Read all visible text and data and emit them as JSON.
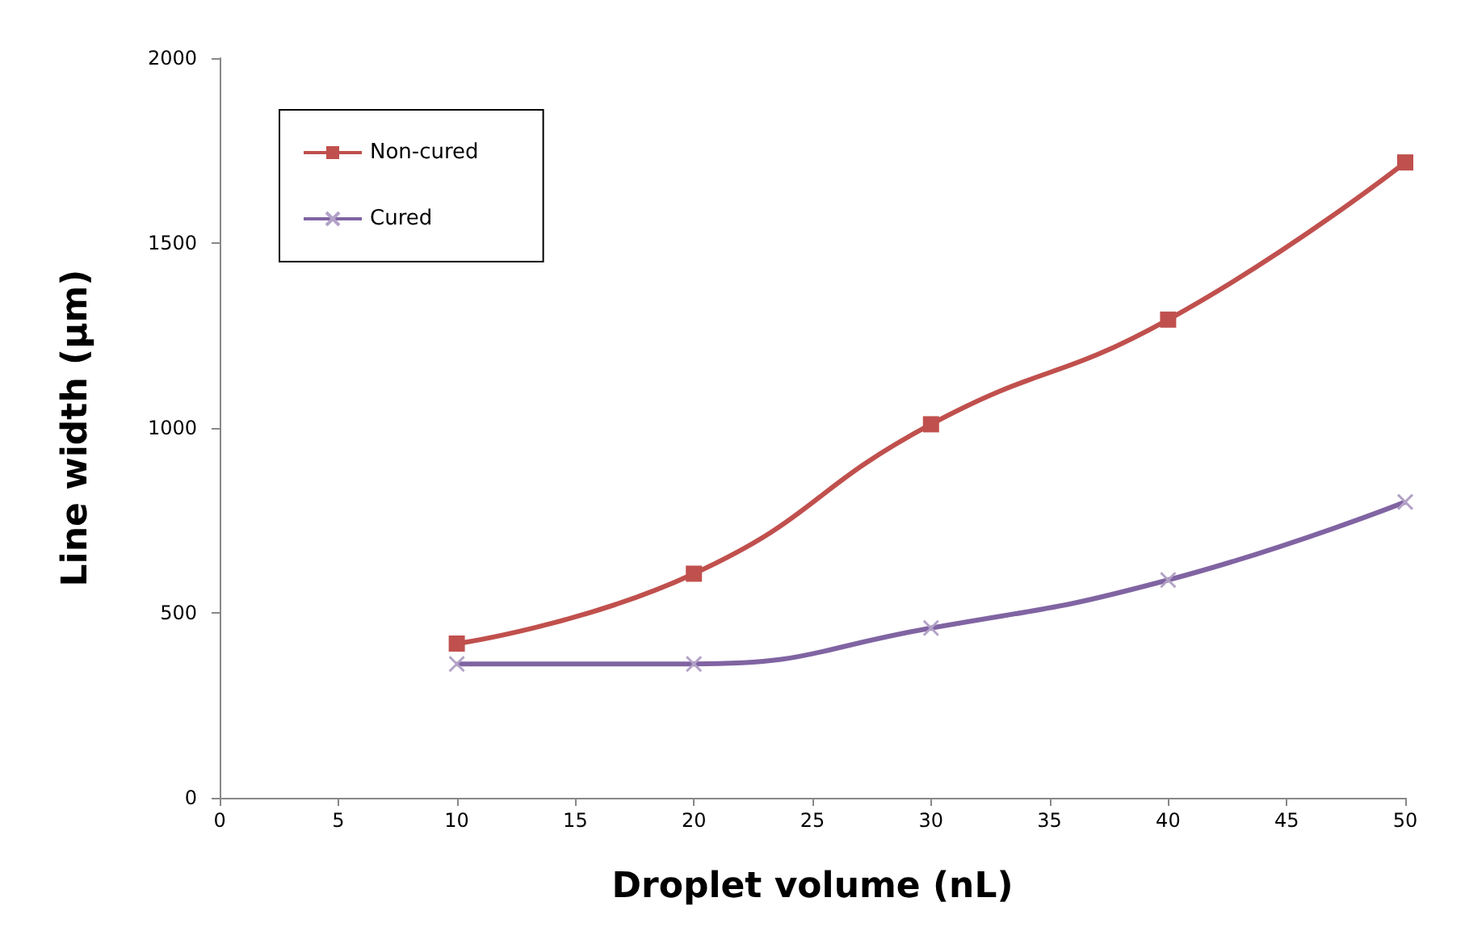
{
  "chart_data": {
    "type": "line",
    "xlabel": "Droplet volume (nL)",
    "ylabel": "Line width (µm)",
    "x": [
      10,
      20,
      30,
      40,
      50
    ],
    "series": [
      {
        "name": "Non-cured",
        "color": "#c0504d",
        "marker": "square",
        "values": [
          417,
          606,
          1010,
          1293,
          1718
        ]
      },
      {
        "name": "Cured",
        "color": "#8064a2",
        "marker": "cross",
        "values": [
          362,
          362,
          459,
          589,
          800
        ]
      }
    ],
    "xlim": [
      0,
      50
    ],
    "xticks": [
      0,
      5,
      10,
      15,
      20,
      25,
      30,
      35,
      40,
      45,
      50
    ],
    "ylim": [
      0,
      2000
    ],
    "yticks": [
      0,
      500,
      1000,
      1500,
      2000
    ],
    "grid": false,
    "legend": "top left"
  }
}
